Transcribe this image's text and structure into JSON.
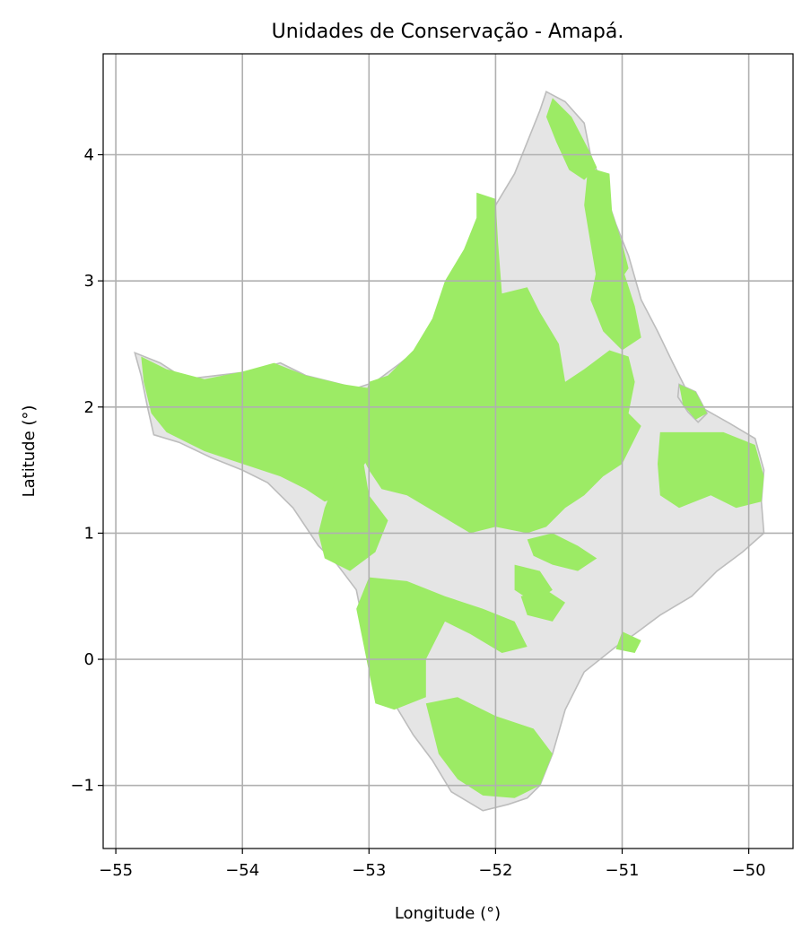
{
  "title": "Unidades de Conservação - Amapá.",
  "x_axis": {
    "label": "Longitude (°)",
    "range": [
      -55.1,
      -49.65
    ],
    "ticks": [
      -55,
      -54,
      -53,
      -52,
      -51,
      -50
    ],
    "tick_labels": [
      "−55",
      "−54",
      "−53",
      "−52",
      "−51",
      "−50"
    ]
  },
  "y_axis": {
    "label": "Latitude (°)",
    "range": [
      -1.5,
      4.8
    ],
    "ticks": [
      -1,
      0,
      1,
      2,
      3,
      4
    ],
    "tick_labels": [
      "−1",
      "0",
      "1",
      "2",
      "3",
      "4"
    ]
  },
  "grid": true,
  "colors": {
    "state_fill": "#e5e5e5",
    "state_edge": "#bdbdbd",
    "conservation_units": "#9ceb65",
    "grid": "#b0b0b0"
  },
  "layers": {
    "state": {
      "name": "Amapá",
      "outline": [
        [
          -51.6,
          4.5
        ],
        [
          -51.45,
          4.42
        ],
        [
          -51.3,
          4.25
        ],
        [
          -51.25,
          4.0
        ],
        [
          -51.15,
          3.75
        ],
        [
          -51.05,
          3.45
        ],
        [
          -50.95,
          3.2
        ],
        [
          -50.85,
          2.85
        ],
        [
          -50.72,
          2.6
        ],
        [
          -50.6,
          2.35
        ],
        [
          -50.5,
          2.15
        ],
        [
          -50.38,
          2.0
        ],
        [
          -50.15,
          1.87
        ],
        [
          -49.95,
          1.75
        ],
        [
          -49.88,
          1.5
        ],
        [
          -49.9,
          1.25
        ],
        [
          -49.88,
          1.0
        ],
        [
          -50.05,
          0.85
        ],
        [
          -50.25,
          0.7
        ],
        [
          -50.45,
          0.5
        ],
        [
          -50.7,
          0.35
        ],
        [
          -50.9,
          0.2
        ],
        [
          -51.05,
          0.1
        ],
        [
          -51.3,
          -0.1
        ],
        [
          -51.45,
          -0.4
        ],
        [
          -51.55,
          -0.75
        ],
        [
          -51.65,
          -1.0
        ],
        [
          -51.75,
          -1.1
        ],
        [
          -51.9,
          -1.15
        ],
        [
          -52.1,
          -1.2
        ],
        [
          -52.35,
          -1.05
        ],
        [
          -52.5,
          -0.8
        ],
        [
          -52.65,
          -0.6
        ],
        [
          -52.8,
          -0.35
        ],
        [
          -52.9,
          -0.1
        ],
        [
          -53.0,
          0.1
        ],
        [
          -53.05,
          0.3
        ],
        [
          -53.1,
          0.55
        ],
        [
          -53.25,
          0.75
        ],
        [
          -53.4,
          0.9
        ],
        [
          -53.6,
          1.2
        ],
        [
          -53.8,
          1.4
        ],
        [
          -54.0,
          1.5
        ],
        [
          -54.25,
          1.6
        ],
        [
          -54.5,
          1.72
        ],
        [
          -54.7,
          1.78
        ],
        [
          -54.75,
          2.0
        ],
        [
          -54.8,
          2.25
        ],
        [
          -54.85,
          2.43
        ],
        [
          -54.65,
          2.35
        ],
        [
          -54.45,
          2.22
        ],
        [
          -54.2,
          2.25
        ],
        [
          -53.95,
          2.28
        ],
        [
          -53.7,
          2.35
        ],
        [
          -53.5,
          2.25
        ],
        [
          -53.3,
          2.2
        ],
        [
          -53.1,
          2.15
        ],
        [
          -52.95,
          2.2
        ],
        [
          -52.75,
          2.35
        ],
        [
          -52.5,
          2.55
        ],
        [
          -52.4,
          2.85
        ],
        [
          -52.3,
          3.1
        ],
        [
          -52.15,
          3.35
        ],
        [
          -52.0,
          3.6
        ],
        [
          -51.85,
          3.85
        ],
        [
          -51.75,
          4.1
        ],
        [
          -51.65,
          4.35
        ]
      ],
      "islands": [
        [
          [
            -50.55,
            2.18
          ],
          [
            -50.42,
            2.12
          ],
          [
            -50.33,
            1.95
          ],
          [
            -50.4,
            1.88
          ],
          [
            -50.48,
            1.96
          ],
          [
            -50.56,
            2.08
          ]
        ]
      ]
    },
    "conservation_units": [
      [
        [
          -51.55,
          4.45
        ],
        [
          -51.4,
          4.3
        ],
        [
          -51.27,
          4.05
        ],
        [
          -51.2,
          3.9
        ],
        [
          -51.3,
          3.8
        ],
        [
          -51.42,
          3.88
        ],
        [
          -51.52,
          4.1
        ],
        [
          -51.6,
          4.3
        ]
      ],
      [
        [
          -51.27,
          3.9
        ],
        [
          -51.1,
          3.85
        ],
        [
          -51.08,
          3.55
        ],
        [
          -51.0,
          3.3
        ],
        [
          -50.95,
          3.1
        ],
        [
          -51.05,
          2.95
        ],
        [
          -51.2,
          3.0
        ],
        [
          -51.25,
          3.3
        ],
        [
          -51.3,
          3.6
        ]
      ],
      [
        [
          -51.2,
          3.1
        ],
        [
          -50.98,
          3.05
        ],
        [
          -50.9,
          2.8
        ],
        [
          -50.85,
          2.55
        ],
        [
          -51.0,
          2.45
        ],
        [
          -51.15,
          2.6
        ],
        [
          -51.25,
          2.85
        ]
      ],
      [
        [
          -52.15,
          3.7
        ],
        [
          -52.0,
          3.65
        ],
        [
          -51.98,
          3.3
        ],
        [
          -51.95,
          2.9
        ],
        [
          -51.75,
          2.95
        ],
        [
          -51.65,
          2.75
        ],
        [
          -51.5,
          2.5
        ],
        [
          -51.45,
          2.2
        ],
        [
          -51.3,
          2.3
        ],
        [
          -51.1,
          2.45
        ],
        [
          -50.95,
          2.4
        ],
        [
          -50.9,
          2.2
        ],
        [
          -50.95,
          1.95
        ],
        [
          -50.85,
          1.85
        ],
        [
          -51.0,
          1.55
        ],
        [
          -51.15,
          1.45
        ],
        [
          -51.3,
          1.3
        ],
        [
          -51.45,
          1.2
        ],
        [
          -51.6,
          1.05
        ],
        [
          -51.75,
          1.0
        ],
        [
          -52.0,
          1.05
        ],
        [
          -52.2,
          1.0
        ],
        [
          -52.45,
          1.15
        ],
        [
          -52.7,
          1.3
        ],
        [
          -52.9,
          1.35
        ],
        [
          -53.0,
          1.5
        ],
        [
          -53.1,
          1.7
        ],
        [
          -53.05,
          2.0
        ],
        [
          -53.0,
          2.2
        ],
        [
          -52.85,
          2.25
        ],
        [
          -52.65,
          2.45
        ],
        [
          -52.5,
          2.7
        ],
        [
          -52.4,
          3.0
        ],
        [
          -52.25,
          3.25
        ],
        [
          -52.15,
          3.5
        ]
      ],
      [
        [
          -54.8,
          2.4
        ],
        [
          -54.6,
          2.3
        ],
        [
          -54.3,
          2.22
        ],
        [
          -54.0,
          2.28
        ],
        [
          -53.75,
          2.35
        ],
        [
          -53.5,
          2.25
        ],
        [
          -53.2,
          2.18
        ],
        [
          -53.0,
          2.15
        ],
        [
          -53.05,
          1.9
        ],
        [
          -53.0,
          1.6
        ],
        [
          -53.1,
          1.45
        ],
        [
          -53.2,
          1.3
        ],
        [
          -53.35,
          1.25
        ],
        [
          -53.5,
          1.35
        ],
        [
          -53.7,
          1.45
        ],
        [
          -54.0,
          1.55
        ],
        [
          -54.3,
          1.65
        ],
        [
          -54.6,
          1.8
        ],
        [
          -54.72,
          1.95
        ],
        [
          -54.78,
          2.2
        ]
      ],
      [
        [
          -53.2,
          1.7
        ],
        [
          -53.05,
          1.6
        ],
        [
          -53.0,
          1.3
        ],
        [
          -52.85,
          1.1
        ],
        [
          -52.95,
          0.85
        ],
        [
          -53.15,
          0.7
        ],
        [
          -53.35,
          0.8
        ],
        [
          -53.4,
          1.0
        ],
        [
          -53.35,
          1.2
        ],
        [
          -53.25,
          1.45
        ]
      ],
      [
        [
          -53.0,
          0.65
        ],
        [
          -52.7,
          0.62
        ],
        [
          -52.4,
          0.5
        ],
        [
          -52.1,
          0.4
        ],
        [
          -51.85,
          0.3
        ],
        [
          -51.75,
          0.1
        ],
        [
          -51.95,
          0.05
        ],
        [
          -52.2,
          0.2
        ],
        [
          -52.4,
          0.3
        ],
        [
          -52.55,
          0.0
        ],
        [
          -52.55,
          -0.3
        ],
        [
          -52.8,
          -0.4
        ],
        [
          -52.95,
          -0.35
        ],
        [
          -53.0,
          -0.1
        ],
        [
          -53.05,
          0.15
        ],
        [
          -53.1,
          0.4
        ]
      ],
      [
        [
          -52.55,
          -0.35
        ],
        [
          -52.3,
          -0.3
        ],
        [
          -52.0,
          -0.45
        ],
        [
          -51.7,
          -0.55
        ],
        [
          -51.55,
          -0.75
        ],
        [
          -51.65,
          -1.0
        ],
        [
          -51.85,
          -1.1
        ],
        [
          -52.1,
          -1.08
        ],
        [
          -52.3,
          -0.95
        ],
        [
          -52.45,
          -0.75
        ],
        [
          -52.5,
          -0.55
        ]
      ],
      [
        [
          -51.75,
          0.95
        ],
        [
          -51.55,
          1.0
        ],
        [
          -51.35,
          0.9
        ],
        [
          -51.2,
          0.8
        ],
        [
          -51.35,
          0.7
        ],
        [
          -51.55,
          0.75
        ],
        [
          -51.7,
          0.82
        ]
      ],
      [
        [
          -51.85,
          0.75
        ],
        [
          -51.65,
          0.7
        ],
        [
          -51.55,
          0.55
        ],
        [
          -51.7,
          0.45
        ],
        [
          -51.85,
          0.55
        ]
      ],
      [
        [
          -51.8,
          0.5
        ],
        [
          -51.6,
          0.55
        ],
        [
          -51.45,
          0.45
        ],
        [
          -51.55,
          0.3
        ],
        [
          -51.75,
          0.35
        ]
      ],
      [
        [
          -51.0,
          0.22
        ],
        [
          -50.85,
          0.15
        ],
        [
          -50.9,
          0.05
        ],
        [
          -51.05,
          0.08
        ]
      ],
      [
        [
          -50.7,
          1.8
        ],
        [
          -50.2,
          1.8
        ],
        [
          -49.95,
          1.7
        ],
        [
          -49.88,
          1.45
        ],
        [
          -49.9,
          1.25
        ],
        [
          -50.1,
          1.2
        ],
        [
          -50.3,
          1.3
        ],
        [
          -50.55,
          1.2
        ],
        [
          -50.7,
          1.3
        ],
        [
          -50.72,
          1.55
        ]
      ],
      [
        [
          -50.55,
          2.18
        ],
        [
          -50.42,
          2.12
        ],
        [
          -50.33,
          1.95
        ],
        [
          -50.42,
          1.9
        ],
        [
          -50.52,
          2.02
        ]
      ]
    ]
  }
}
